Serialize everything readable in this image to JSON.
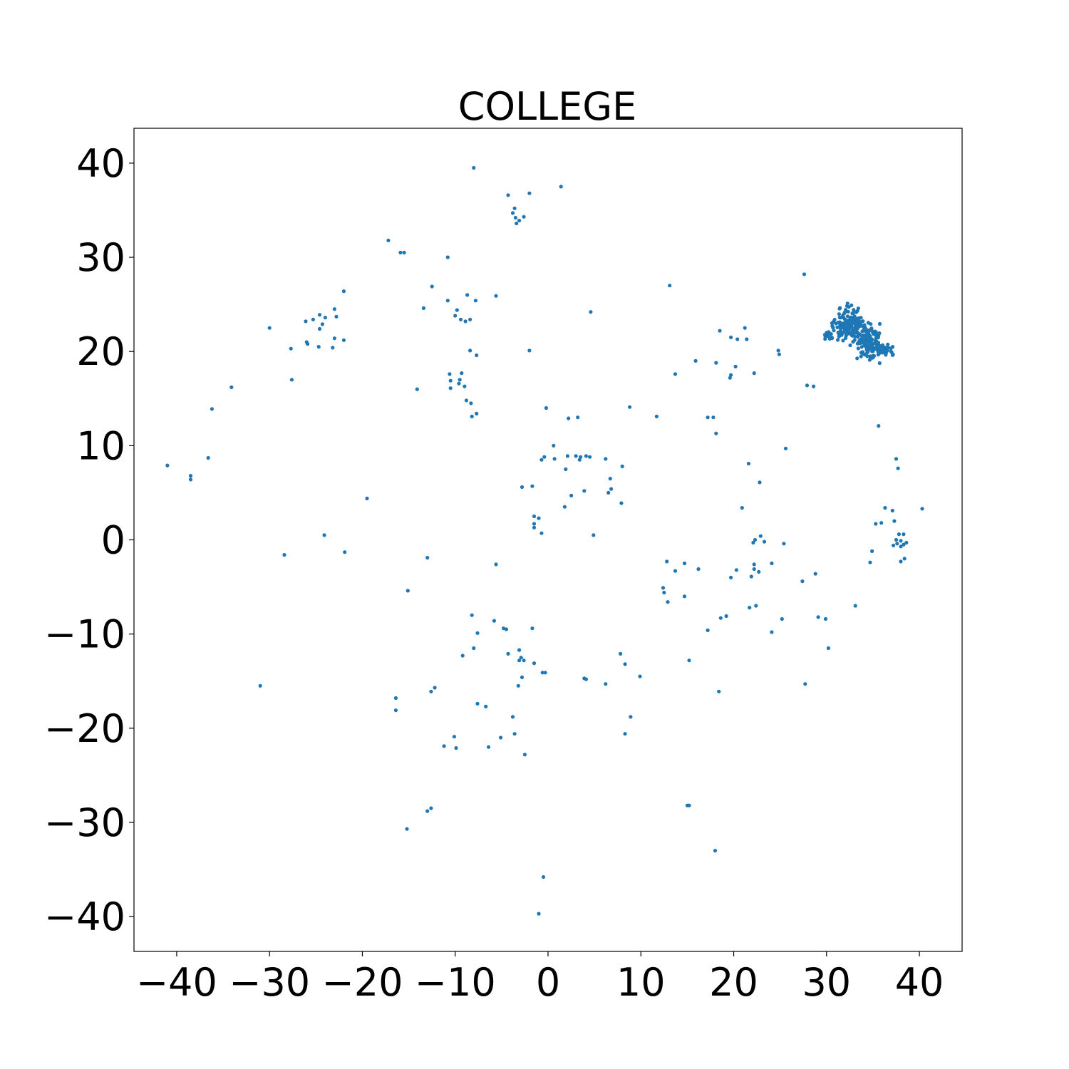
{
  "chart_data": {
    "type": "scatter",
    "title": "COLLEGE",
    "xlabel": "",
    "ylabel": "",
    "xlim": [
      -44.6,
      44.6
    ],
    "ylim": [
      -43.7,
      43.7
    ],
    "xticks": [
      -40,
      -30,
      -20,
      -10,
      0,
      10,
      20,
      30,
      40
    ],
    "yticks": [
      -40,
      -30,
      -20,
      -10,
      0,
      10,
      20,
      30,
      40
    ],
    "xtick_labels": [
      "−40",
      "−30",
      "−20",
      "−10",
      "0",
      "10",
      "20",
      "30",
      "40"
    ],
    "ytick_labels": [
      "−40",
      "−30",
      "−20",
      "−10",
      "0",
      "10",
      "20",
      "30",
      "40"
    ],
    "grid": false,
    "marker_color": "#1f77b4",
    "points": [
      [
        -8.0,
        39.5
      ],
      [
        1.4,
        37.5
      ],
      [
        -4.3,
        36.6
      ],
      [
        -2.0,
        36.8
      ],
      [
        -3.8,
        34.7
      ],
      [
        -3.5,
        34.2
      ],
      [
        -3.1,
        33.9
      ],
      [
        -2.6,
        34.3
      ],
      [
        -3.4,
        33.6
      ],
      [
        -3.6,
        35.2
      ],
      [
        -17.2,
        31.8
      ],
      [
        -15.9,
        30.5
      ],
      [
        -15.5,
        30.5
      ],
      [
        -10.8,
        30.0
      ],
      [
        -12.5,
        26.9
      ],
      [
        -8.7,
        26.0
      ],
      [
        -7.8,
        25.4
      ],
      [
        -5.6,
        25.9
      ],
      [
        -10.8,
        25.4
      ],
      [
        -13.4,
        24.6
      ],
      [
        -9.8,
        24.4
      ],
      [
        -8.4,
        23.4
      ],
      [
        -9.4,
        23.4
      ],
      [
        -10.0,
        23.8
      ],
      [
        -8.9,
        23.2
      ],
      [
        -22.0,
        26.4
      ],
      [
        -23.0,
        24.5
      ],
      [
        -24.0,
        23.6
      ],
      [
        -24.6,
        23.9
      ],
      [
        -25.3,
        23.4
      ],
      [
        -26.1,
        23.2
      ],
      [
        -24.3,
        22.9
      ],
      [
        -24.6,
        22.4
      ],
      [
        -24.7,
        20.5
      ],
      [
        -23.2,
        20.4
      ],
      [
        -22.0,
        21.2
      ],
      [
        -23.0,
        21.4
      ],
      [
        -26.0,
        21.0
      ],
      [
        -25.9,
        20.8
      ],
      [
        -27.7,
        20.3
      ],
      [
        -30.0,
        22.5
      ],
      [
        -27.6,
        17.0
      ],
      [
        -22.8,
        23.7
      ],
      [
        -8.4,
        20.1
      ],
      [
        -7.7,
        19.6
      ],
      [
        -10.6,
        17.6
      ],
      [
        -10.5,
        16.9
      ],
      [
        -10.5,
        16.1
      ],
      [
        -9.3,
        17.7
      ],
      [
        -9.5,
        17.0
      ],
      [
        -9.0,
        16.3
      ],
      [
        -9.6,
        16.6
      ],
      [
        -8.8,
        14.8
      ],
      [
        -8.3,
        14.5
      ],
      [
        -8.2,
        13.1
      ],
      [
        -7.7,
        13.4
      ],
      [
        -14.1,
        16.0
      ],
      [
        -2.0,
        20.1
      ],
      [
        4.6,
        24.2
      ],
      [
        -34.1,
        16.2
      ],
      [
        -36.2,
        13.9
      ],
      [
        -36.6,
        8.7
      ],
      [
        -41.0,
        7.9
      ],
      [
        -38.5,
        6.8
      ],
      [
        -38.5,
        6.4
      ],
      [
        -0.2,
        14.0
      ],
      [
        2.2,
        12.9
      ],
      [
        3.2,
        13.0
      ],
      [
        8.8,
        14.1
      ],
      [
        11.7,
        13.1
      ],
      [
        0.6,
        10.0
      ],
      [
        -0.4,
        8.8
      ],
      [
        -0.7,
        8.5
      ],
      [
        0.7,
        8.6
      ],
      [
        2.1,
        8.9
      ],
      [
        3.0,
        8.9
      ],
      [
        3.5,
        8.8
      ],
      [
        4.1,
        8.9
      ],
      [
        4.5,
        8.8
      ],
      [
        3.4,
        8.5
      ],
      [
        6.2,
        8.6
      ],
      [
        8.0,
        7.8
      ],
      [
        1.9,
        7.5
      ],
      [
        6.7,
        6.5
      ],
      [
        6.8,
        5.4
      ],
      [
        6.5,
        5.0
      ],
      [
        3.9,
        5.2
      ],
      [
        2.5,
        4.7
      ],
      [
        7.9,
        3.9
      ],
      [
        1.8,
        3.5
      ],
      [
        -1.7,
        5.7
      ],
      [
        -2.8,
        5.6
      ],
      [
        -1.5,
        2.5
      ],
      [
        -1.0,
        2.3
      ],
      [
        -1.5,
        1.7
      ],
      [
        -1.5,
        1.3
      ],
      [
        -0.7,
        0.7
      ],
      [
        4.9,
        0.5
      ],
      [
        -19.5,
        4.4
      ],
      [
        -24.1,
        0.5
      ],
      [
        -28.4,
        -1.6
      ],
      [
        -21.9,
        -1.3
      ],
      [
        13.1,
        27.0
      ],
      [
        13.7,
        17.6
      ],
      [
        15.9,
        19.0
      ],
      [
        18.1,
        18.8
      ],
      [
        18.5,
        22.2
      ],
      [
        19.7,
        21.5
      ],
      [
        20.4,
        21.3
      ],
      [
        21.2,
        22.5
      ],
      [
        21.4,
        21.3
      ],
      [
        20.2,
        18.4
      ],
      [
        19.7,
        17.5
      ],
      [
        19.6,
        17.2
      ],
      [
        22.2,
        17.7
      ],
      [
        24.8,
        20.1
      ],
      [
        24.9,
        19.7
      ],
      [
        17.2,
        13.0
      ],
      [
        17.8,
        13.0
      ],
      [
        18.1,
        11.3
      ],
      [
        21.6,
        8.1
      ],
      [
        25.6,
        9.7
      ],
      [
        22.8,
        6.1
      ],
      [
        20.9,
        3.4
      ],
      [
        27.6,
        28.2
      ],
      [
        27.9,
        16.4
      ],
      [
        28.6,
        16.3
      ],
      [
        35.6,
        12.1
      ],
      [
        37.5,
        8.6
      ],
      [
        37.7,
        7.6
      ],
      [
        36.3,
        3.4
      ],
      [
        37.1,
        3.1
      ],
      [
        40.3,
        3.3
      ],
      [
        35.3,
        1.7
      ],
      [
        35.9,
        1.8
      ],
      [
        37.3,
        2.0
      ],
      [
        37.8,
        0.6
      ],
      [
        38.3,
        0.6
      ],
      [
        37.5,
        0.0
      ],
      [
        38.0,
        -0.1
      ],
      [
        38.6,
        -0.3
      ],
      [
        38.3,
        -0.5
      ],
      [
        37.6,
        -0.4
      ],
      [
        37.2,
        -0.6
      ],
      [
        38.0,
        -0.7
      ],
      [
        34.9,
        -1.2
      ],
      [
        34.7,
        -2.4
      ],
      [
        38.4,
        -2.0
      ],
      [
        38.0,
        -2.3
      ],
      [
        22.3,
        0.0
      ],
      [
        22.9,
        0.4
      ],
      [
        23.3,
        -0.2
      ],
      [
        25.4,
        -0.4
      ],
      [
        22.1,
        -0.3
      ],
      [
        22.2,
        -2.6
      ],
      [
        22.2,
        -3.1
      ],
      [
        21.9,
        -3.9
      ],
      [
        22.7,
        -3.4
      ],
      [
        24.1,
        -2.5
      ],
      [
        20.3,
        -3.2
      ],
      [
        19.7,
        -4.0
      ],
      [
        16.2,
        -3.1
      ],
      [
        14.7,
        -2.5
      ],
      [
        12.8,
        -2.3
      ],
      [
        13.7,
        -3.3
      ],
      [
        12.4,
        -5.1
      ],
      [
        12.5,
        -5.6
      ],
      [
        14.7,
        -6.0
      ],
      [
        12.9,
        -6.6
      ],
      [
        21.7,
        -7.2
      ],
      [
        22.4,
        -7.0
      ],
      [
        18.6,
        -8.3
      ],
      [
        19.2,
        -8.1
      ],
      [
        17.2,
        -9.6
      ],
      [
        24.1,
        -9.8
      ],
      [
        25.2,
        -8.4
      ],
      [
        27.4,
        -4.4
      ],
      [
        28.8,
        -3.6
      ],
      [
        29.1,
        -8.2
      ],
      [
        29.9,
        -8.4
      ],
      [
        30.2,
        -11.5
      ],
      [
        33.1,
        -7.0
      ],
      [
        -13.0,
        -1.9
      ],
      [
        -15.1,
        -5.4
      ],
      [
        -5.6,
        -2.6
      ],
      [
        -8.2,
        -8.0
      ],
      [
        -5.8,
        -8.6
      ],
      [
        -7.6,
        -9.9
      ],
      [
        -4.8,
        -9.4
      ],
      [
        -4.5,
        -9.5
      ],
      [
        -1.7,
        -9.4
      ],
      [
        -8.0,
        -11.5
      ],
      [
        -9.2,
        -12.3
      ],
      [
        -4.3,
        -12.1
      ],
      [
        -3.1,
        -11.7
      ],
      [
        -2.9,
        -12.5
      ],
      [
        -2.6,
        -12.8
      ],
      [
        -3.1,
        -12.8
      ],
      [
        -1.5,
        -13.1
      ],
      [
        -0.6,
        -14.1
      ],
      [
        -0.3,
        -14.1
      ],
      [
        -2.8,
        -14.6
      ],
      [
        -3.2,
        -15.5
      ],
      [
        3.9,
        -14.7
      ],
      [
        4.1,
        -14.8
      ],
      [
        6.2,
        -15.3
      ],
      [
        7.8,
        -12.1
      ],
      [
        8.3,
        -13.2
      ],
      [
        9.9,
        -14.5
      ],
      [
        8.9,
        -18.8
      ],
      [
        8.3,
        -20.6
      ],
      [
        -7.6,
        -17.4
      ],
      [
        -6.7,
        -17.7
      ],
      [
        -3.8,
        -18.8
      ],
      [
        -12.6,
        -16.1
      ],
      [
        -12.2,
        -15.7
      ],
      [
        -16.4,
        -16.8
      ],
      [
        -16.4,
        -18.1
      ],
      [
        -3.6,
        -20.6
      ],
      [
        -5.1,
        -21.0
      ],
      [
        -6.4,
        -22.0
      ],
      [
        -10.1,
        -20.9
      ],
      [
        -9.9,
        -22.1
      ],
      [
        -11.2,
        -21.9
      ],
      [
        -2.5,
        -22.8
      ],
      [
        -31.0,
        -15.5
      ],
      [
        15.2,
        -12.8
      ],
      [
        18.4,
        -16.1
      ],
      [
        27.7,
        -15.3
      ],
      [
        -13.0,
        -28.8
      ],
      [
        -12.6,
        -28.5
      ],
      [
        -15.2,
        -30.7
      ],
      [
        15.0,
        -28.2
      ],
      [
        15.2,
        -28.2
      ],
      [
        18.0,
        -33.0
      ],
      [
        -0.5,
        -35.8
      ],
      [
        -1.0,
        -39.7
      ]
    ],
    "clusters": [
      {
        "center": [
          32.5,
          22.8
        ],
        "spread": [
          1.4,
          1.3
        ],
        "count": 170
      },
      {
        "center": [
          34.6,
          20.9
        ],
        "spread": [
          1.1,
          1.3
        ],
        "count": 150
      },
      {
        "center": [
          36.4,
          20.2
        ],
        "spread": [
          0.6,
          0.4
        ],
        "count": 30
      },
      {
        "center": [
          30.2,
          21.8
        ],
        "spread": [
          0.4,
          0.4
        ],
        "count": 14
      }
    ]
  }
}
